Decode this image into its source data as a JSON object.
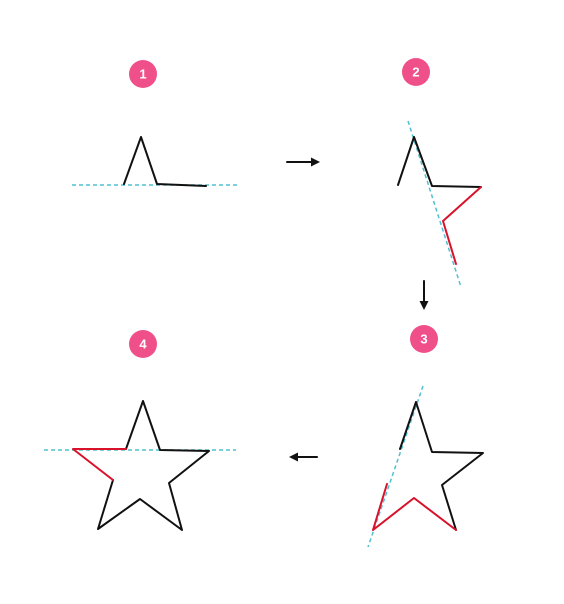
{
  "steps": [
    {
      "badge": "1"
    },
    {
      "badge": "2"
    },
    {
      "badge": "3"
    },
    {
      "badge": "4"
    }
  ],
  "colors": {
    "badge": "#f0508a",
    "badge_text": "#ffffff",
    "ink": "#111111",
    "highlight": "#d9122b",
    "guide_line": "#4fc0cf"
  },
  "arrows": [
    {
      "from": "1",
      "to": "2",
      "direction": "right"
    },
    {
      "from": "2",
      "to": "3",
      "direction": "down"
    },
    {
      "from": "3",
      "to": "4",
      "direction": "left"
    }
  ]
}
